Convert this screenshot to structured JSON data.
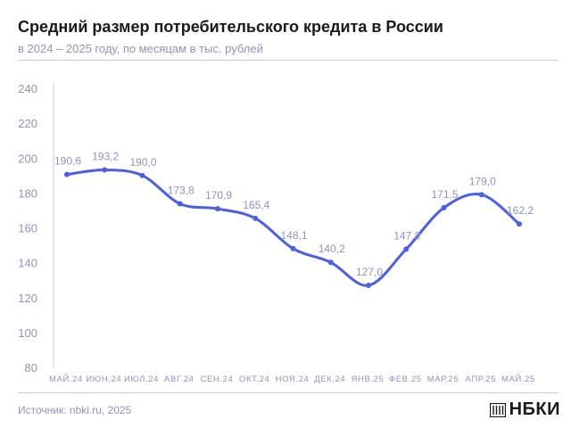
{
  "header": {
    "title": "Средний размер потребительского кредита в России",
    "subtitle": "в 2024 – 2025 году, по месяцам в тыс. рублей"
  },
  "footer": {
    "source": "Источник: nbki.ru, 2025",
    "logo_text": "НБКИ"
  },
  "colors": {
    "line": "#4a5ee8",
    "axis_text": "#8f93bd",
    "rule": "#c9cbe3"
  },
  "chart_data": {
    "type": "line",
    "title": "Средний размер потребительского кредита в России",
    "subtitle": "в 2024 – 2025 году, по месяцам в тыс. рублей",
    "categories": [
      "МАЙ.24",
      "ИЮН.24",
      "ИЮЛ.24",
      "АВГ.24",
      "СЕН.24",
      "ОКТ.24",
      "НОЯ.24",
      "ДЕК.24",
      "ЯНВ.25",
      "ФЕВ.25",
      "МАР.25",
      "АПР.25",
      "МАЙ.25"
    ],
    "series": [
      {
        "values": [
          190.6,
          193.2,
          190.0,
          173.8,
          170.9,
          165.4,
          148.1,
          140.2,
          127.0,
          147.8,
          171.5,
          179.0,
          162.2
        ],
        "labels": [
          "190,6",
          "193,2",
          "190,0",
          "173,8",
          "170,9",
          "165,4",
          "148,1",
          "140,2",
          "127,0",
          "147,8",
          "171,5",
          "179,0",
          "162,2"
        ]
      }
    ],
    "yticks": [
      80,
      100,
      120,
      140,
      160,
      180,
      200,
      220,
      240
    ],
    "ylim": [
      80,
      240
    ],
    "grid": false,
    "smooth": true
  }
}
